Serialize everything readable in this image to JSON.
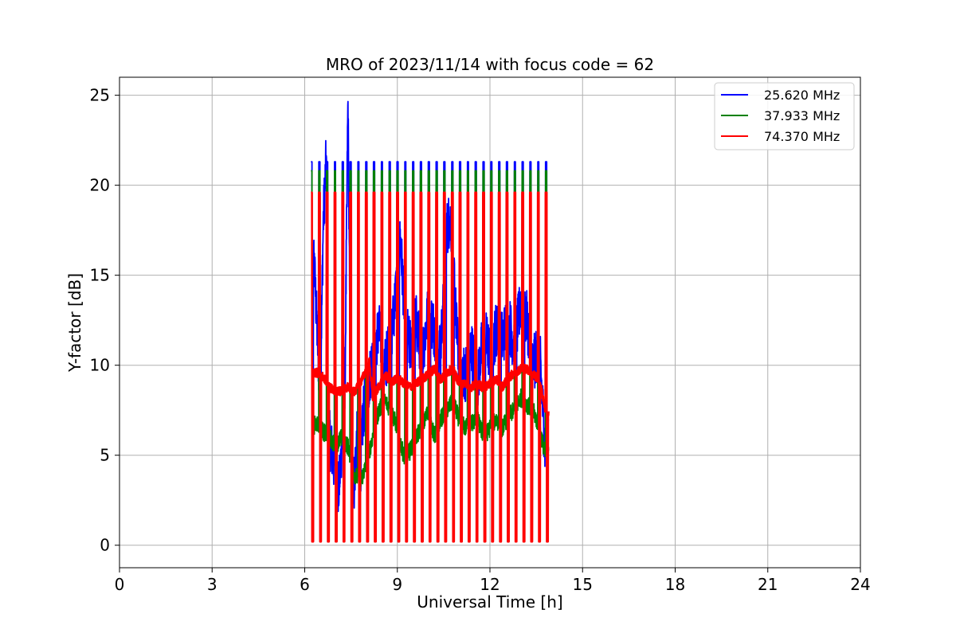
{
  "chart_data": {
    "type": "line",
    "title": "MRO of 2023/11/14 with focus code = 62",
    "xlabel": "Universal Time [h]",
    "ylabel": "Y-factor [dB]",
    "xlim": [
      0,
      24
    ],
    "ylim": [
      -1.25,
      26
    ],
    "xticks": [
      0,
      3,
      6,
      9,
      12,
      15,
      18,
      21,
      24
    ],
    "yticks": [
      0,
      5,
      10,
      15,
      20,
      25
    ],
    "grid": true,
    "legend_position": "top-right",
    "calibration_pulses": {
      "start_h": 6.2,
      "end_h": 13.8,
      "count": 31,
      "width_h": 0.08,
      "note_peaks_db": {
        "25.620 MHz": 21.3,
        "37.933 MHz": 20.8,
        "74.370 MHz": 19.6
      }
    },
    "series": [
      {
        "name": "25.620 MHz",
        "color": "#0000ff",
        "x": [
          6.2,
          6.3,
          6.4,
          6.5,
          6.6,
          6.7,
          6.8,
          6.9,
          7.0,
          7.1,
          7.2,
          7.3,
          7.4,
          7.5,
          7.6,
          7.7,
          7.8,
          7.9,
          8.0,
          8.2,
          8.4,
          8.6,
          8.8,
          9.0,
          9.1,
          9.2,
          9.3,
          9.4,
          9.6,
          9.8,
          10.0,
          10.2,
          10.4,
          10.6,
          10.7,
          10.8,
          10.9,
          11.0,
          11.2,
          11.4,
          11.6,
          11.8,
          12.0,
          12.2,
          12.4,
          12.6,
          12.8,
          13.0,
          13.2,
          13.4,
          13.6,
          13.8,
          13.9
        ],
        "y": [
          9.5,
          16.0,
          12.0,
          8.0,
          18.0,
          21.5,
          6.0,
          5.0,
          4.0,
          3.0,
          5.5,
          8.0,
          24.7,
          4.5,
          3.5,
          6.0,
          4.0,
          7.5,
          8.0,
          10.5,
          12.0,
          10.0,
          11.5,
          15.0,
          17.0,
          14.0,
          12.0,
          11.0,
          12.5,
          10.5,
          13.0,
          12.0,
          10.5,
          17.5,
          18.2,
          17.0,
          12.5,
          10.0,
          9.5,
          11.0,
          9.0,
          12.0,
          10.5,
          12.0,
          11.5,
          12.5,
          11.0,
          13.5,
          12.5,
          10.0,
          11.0,
          5.0,
          8.0
        ]
      },
      {
        "name": "37.933 MHz",
        "color": "#008000",
        "x": [
          6.2,
          6.4,
          6.6,
          6.8,
          7.0,
          7.2,
          7.4,
          7.6,
          7.8,
          8.0,
          8.2,
          8.4,
          8.6,
          8.8,
          9.0,
          9.2,
          9.4,
          9.6,
          9.8,
          10.0,
          10.2,
          10.4,
          10.6,
          10.8,
          11.0,
          11.2,
          11.4,
          11.6,
          11.8,
          12.0,
          12.2,
          12.4,
          12.6,
          12.8,
          13.0,
          13.2,
          13.4,
          13.6,
          13.8,
          13.9
        ],
        "y": [
          6.5,
          6.8,
          6.3,
          6.0,
          5.5,
          6.0,
          5.5,
          4.0,
          3.5,
          4.5,
          6.0,
          7.5,
          8.0,
          7.5,
          6.5,
          5.0,
          5.2,
          6.0,
          6.5,
          7.5,
          6.0,
          7.0,
          7.5,
          8.0,
          7.0,
          6.5,
          6.8,
          7.0,
          6.0,
          6.5,
          7.0,
          6.5,
          7.2,
          7.5,
          8.2,
          7.8,
          7.5,
          6.5,
          5.0,
          5.5
        ]
      },
      {
        "name": "74.370 MHz",
        "color": "#ff0000",
        "x": [
          6.2,
          6.4,
          6.6,
          6.8,
          7.0,
          7.2,
          7.4,
          7.6,
          7.8,
          8.0,
          8.1,
          8.2,
          8.4,
          8.6,
          8.8,
          9.0,
          9.2,
          9.4,
          9.6,
          9.8,
          10.0,
          10.2,
          10.4,
          10.6,
          10.8,
          11.0,
          11.2,
          11.4,
          11.6,
          11.8,
          12.0,
          12.2,
          12.4,
          12.6,
          12.8,
          13.0,
          13.2,
          13.4,
          13.6,
          13.8,
          13.9
        ],
        "y": [
          9.5,
          9.6,
          9.3,
          8.8,
          8.5,
          8.6,
          8.8,
          8.5,
          9.0,
          9.8,
          10.2,
          8.2,
          8.8,
          9.5,
          9.0,
          9.3,
          9.0,
          8.8,
          9.0,
          9.2,
          9.5,
          9.8,
          9.2,
          9.6,
          9.8,
          9.0,
          9.0,
          8.8,
          9.0,
          8.7,
          9.0,
          9.2,
          8.8,
          9.3,
          9.6,
          9.8,
          9.8,
          9.5,
          9.2,
          7.5,
          7.2
        ]
      }
    ]
  }
}
